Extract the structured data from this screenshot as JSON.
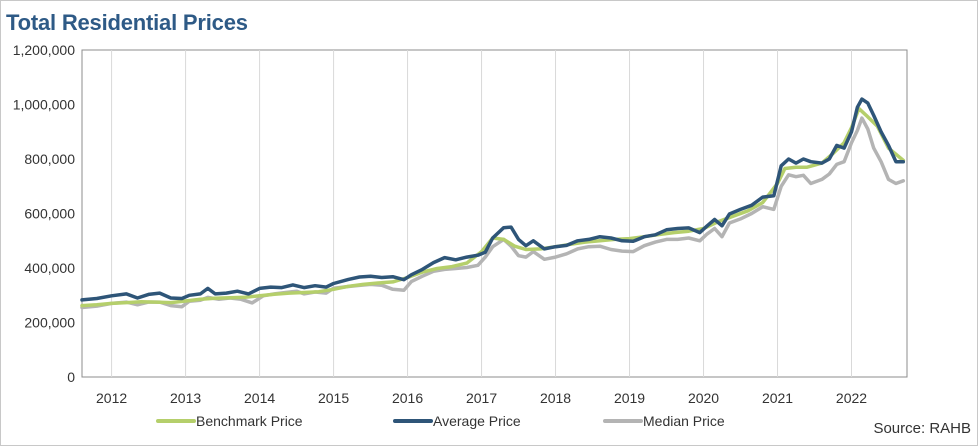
{
  "chart_data": {
    "type": "line",
    "title": "Total Residential Prices",
    "source": "Source: RAHB",
    "ylim": [
      0,
      1200000
    ],
    "y_ticks": [
      "0",
      "200,000",
      "400,000",
      "600,000",
      "800,000",
      "1,000,000",
      "1,200,000"
    ],
    "x_range": [
      2011.6,
      2022.75
    ],
    "x_ticks": [
      "2012",
      "2013",
      "2014",
      "2015",
      "2016",
      "2017",
      "2018",
      "2019",
      "2020",
      "2021",
      "2022"
    ],
    "grid": "vertical year dividers",
    "legend_position": "bottom",
    "series": [
      {
        "name": "Benchmark Price",
        "color": "#b5cf6b",
        "points": [
          [
            2011.6,
            262000
          ],
          [
            2011.8,
            265000
          ],
          [
            2012.0,
            270000
          ],
          [
            2012.2,
            273000
          ],
          [
            2012.4,
            276000
          ],
          [
            2012.6,
            275000
          ],
          [
            2012.8,
            273000
          ],
          [
            2013.0,
            279000
          ],
          [
            2013.2,
            285000
          ],
          [
            2013.4,
            289000
          ],
          [
            2013.6,
            291000
          ],
          [
            2013.8,
            293000
          ],
          [
            2014.0,
            298000
          ],
          [
            2014.2,
            304000
          ],
          [
            2014.4,
            308000
          ],
          [
            2014.6,
            310000
          ],
          [
            2014.8,
            313000
          ],
          [
            2015.0,
            322000
          ],
          [
            2015.2,
            333000
          ],
          [
            2015.4,
            340000
          ],
          [
            2015.6,
            345000
          ],
          [
            2015.8,
            349000
          ],
          [
            2016.0,
            365000
          ],
          [
            2016.2,
            385000
          ],
          [
            2016.4,
            398000
          ],
          [
            2016.6,
            405000
          ],
          [
            2016.8,
            418000
          ],
          [
            2017.0,
            460000
          ],
          [
            2017.15,
            510000
          ],
          [
            2017.3,
            505000
          ],
          [
            2017.45,
            480000
          ],
          [
            2017.6,
            468000
          ],
          [
            2017.8,
            470000
          ],
          [
            2018.0,
            478000
          ],
          [
            2018.2,
            487000
          ],
          [
            2018.4,
            495000
          ],
          [
            2018.6,
            500000
          ],
          [
            2018.8,
            505000
          ],
          [
            2019.0,
            508000
          ],
          [
            2019.2,
            515000
          ],
          [
            2019.4,
            523000
          ],
          [
            2019.6,
            530000
          ],
          [
            2019.8,
            535000
          ],
          [
            2020.0,
            545000
          ],
          [
            2020.2,
            570000
          ],
          [
            2020.4,
            590000
          ],
          [
            2020.6,
            610000
          ],
          [
            2020.8,
            640000
          ],
          [
            2021.0,
            710000
          ],
          [
            2021.1,
            765000
          ],
          [
            2021.25,
            770000
          ],
          [
            2021.4,
            770000
          ],
          [
            2021.6,
            785000
          ],
          [
            2021.75,
            820000
          ],
          [
            2021.9,
            860000
          ],
          [
            2022.0,
            915000
          ],
          [
            2022.1,
            985000
          ],
          [
            2022.2,
            960000
          ],
          [
            2022.35,
            920000
          ],
          [
            2022.5,
            840000
          ],
          [
            2022.7,
            795000
          ]
        ]
      },
      {
        "name": "Average Price",
        "color": "#2e5578",
        "points": [
          [
            2011.6,
            283000
          ],
          [
            2011.8,
            288000
          ],
          [
            2012.0,
            298000
          ],
          [
            2012.2,
            305000
          ],
          [
            2012.35,
            290000
          ],
          [
            2012.5,
            303000
          ],
          [
            2012.65,
            308000
          ],
          [
            2012.8,
            290000
          ],
          [
            2012.95,
            288000
          ],
          [
            2013.05,
            300000
          ],
          [
            2013.2,
            305000
          ],
          [
            2013.3,
            325000
          ],
          [
            2013.4,
            305000
          ],
          [
            2013.55,
            308000
          ],
          [
            2013.7,
            315000
          ],
          [
            2013.85,
            305000
          ],
          [
            2014.0,
            325000
          ],
          [
            2014.15,
            330000
          ],
          [
            2014.3,
            328000
          ],
          [
            2014.45,
            338000
          ],
          [
            2014.6,
            328000
          ],
          [
            2014.75,
            335000
          ],
          [
            2014.9,
            330000
          ],
          [
            2015.0,
            343000
          ],
          [
            2015.2,
            358000
          ],
          [
            2015.35,
            367000
          ],
          [
            2015.5,
            370000
          ],
          [
            2015.65,
            365000
          ],
          [
            2015.8,
            368000
          ],
          [
            2015.95,
            357000
          ],
          [
            2016.05,
            375000
          ],
          [
            2016.2,
            395000
          ],
          [
            2016.35,
            420000
          ],
          [
            2016.5,
            438000
          ],
          [
            2016.65,
            430000
          ],
          [
            2016.8,
            440000
          ],
          [
            2016.95,
            447000
          ],
          [
            2017.05,
            458000
          ],
          [
            2017.15,
            510000
          ],
          [
            2017.3,
            548000
          ],
          [
            2017.4,
            550000
          ],
          [
            2017.5,
            505000
          ],
          [
            2017.6,
            482000
          ],
          [
            2017.7,
            500000
          ],
          [
            2017.85,
            470000
          ],
          [
            2018.0,
            478000
          ],
          [
            2018.15,
            483000
          ],
          [
            2018.3,
            500000
          ],
          [
            2018.45,
            505000
          ],
          [
            2018.6,
            515000
          ],
          [
            2018.75,
            510000
          ],
          [
            2018.9,
            500000
          ],
          [
            2019.05,
            498000
          ],
          [
            2019.2,
            515000
          ],
          [
            2019.35,
            522000
          ],
          [
            2019.5,
            540000
          ],
          [
            2019.65,
            545000
          ],
          [
            2019.8,
            547000
          ],
          [
            2019.95,
            530000
          ],
          [
            2020.05,
            555000
          ],
          [
            2020.15,
            578000
          ],
          [
            2020.25,
            555000
          ],
          [
            2020.35,
            598000
          ],
          [
            2020.5,
            615000
          ],
          [
            2020.65,
            630000
          ],
          [
            2020.8,
            660000
          ],
          [
            2020.95,
            665000
          ],
          [
            2021.05,
            775000
          ],
          [
            2021.15,
            800000
          ],
          [
            2021.25,
            785000
          ],
          [
            2021.35,
            800000
          ],
          [
            2021.45,
            790000
          ],
          [
            2021.6,
            785000
          ],
          [
            2021.7,
            800000
          ],
          [
            2021.8,
            850000
          ],
          [
            2021.9,
            840000
          ],
          [
            2022.0,
            900000
          ],
          [
            2022.08,
            990000
          ],
          [
            2022.14,
            1020000
          ],
          [
            2022.22,
            1005000
          ],
          [
            2022.3,
            960000
          ],
          [
            2022.4,
            900000
          ],
          [
            2022.5,
            850000
          ],
          [
            2022.6,
            790000
          ],
          [
            2022.7,
            790000
          ]
        ]
      },
      {
        "name": "Median Price",
        "color": "#b4b4b4",
        "points": [
          [
            2011.6,
            255000
          ],
          [
            2011.8,
            260000
          ],
          [
            2012.0,
            270000
          ],
          [
            2012.2,
            275000
          ],
          [
            2012.35,
            265000
          ],
          [
            2012.5,
            275000
          ],
          [
            2012.65,
            275000
          ],
          [
            2012.8,
            262000
          ],
          [
            2012.95,
            258000
          ],
          [
            2013.05,
            278000
          ],
          [
            2013.2,
            282000
          ],
          [
            2013.3,
            292000
          ],
          [
            2013.45,
            285000
          ],
          [
            2013.6,
            290000
          ],
          [
            2013.75,
            285000
          ],
          [
            2013.9,
            272000
          ],
          [
            2014.05,
            298000
          ],
          [
            2014.2,
            305000
          ],
          [
            2014.35,
            310000
          ],
          [
            2014.5,
            315000
          ],
          [
            2014.6,
            305000
          ],
          [
            2014.75,
            312000
          ],
          [
            2014.9,
            308000
          ],
          [
            2015.0,
            326000
          ],
          [
            2015.2,
            332000
          ],
          [
            2015.35,
            336000
          ],
          [
            2015.5,
            340000
          ],
          [
            2015.65,
            337000
          ],
          [
            2015.8,
            322000
          ],
          [
            2015.95,
            318000
          ],
          [
            2016.05,
            350000
          ],
          [
            2016.2,
            370000
          ],
          [
            2016.35,
            388000
          ],
          [
            2016.5,
            395000
          ],
          [
            2016.65,
            398000
          ],
          [
            2016.8,
            402000
          ],
          [
            2016.95,
            410000
          ],
          [
            2017.05,
            440000
          ],
          [
            2017.15,
            478000
          ],
          [
            2017.3,
            505000
          ],
          [
            2017.4,
            480000
          ],
          [
            2017.5,
            445000
          ],
          [
            2017.6,
            440000
          ],
          [
            2017.7,
            460000
          ],
          [
            2017.85,
            432000
          ],
          [
            2018.0,
            440000
          ],
          [
            2018.15,
            452000
          ],
          [
            2018.3,
            470000
          ],
          [
            2018.45,
            478000
          ],
          [
            2018.6,
            480000
          ],
          [
            2018.75,
            468000
          ],
          [
            2018.9,
            462000
          ],
          [
            2019.05,
            460000
          ],
          [
            2019.2,
            482000
          ],
          [
            2019.35,
            495000
          ],
          [
            2019.5,
            505000
          ],
          [
            2019.65,
            505000
          ],
          [
            2019.8,
            510000
          ],
          [
            2019.95,
            500000
          ],
          [
            2020.05,
            525000
          ],
          [
            2020.15,
            545000
          ],
          [
            2020.25,
            515000
          ],
          [
            2020.35,
            565000
          ],
          [
            2020.5,
            580000
          ],
          [
            2020.65,
            600000
          ],
          [
            2020.8,
            625000
          ],
          [
            2020.95,
            615000
          ],
          [
            2021.05,
            700000
          ],
          [
            2021.15,
            742000
          ],
          [
            2021.25,
            735000
          ],
          [
            2021.35,
            740000
          ],
          [
            2021.45,
            710000
          ],
          [
            2021.6,
            725000
          ],
          [
            2021.7,
            745000
          ],
          [
            2021.8,
            780000
          ],
          [
            2021.9,
            790000
          ],
          [
            2022.0,
            860000
          ],
          [
            2022.08,
            905000
          ],
          [
            2022.14,
            950000
          ],
          [
            2022.22,
            910000
          ],
          [
            2022.3,
            840000
          ],
          [
            2022.4,
            790000
          ],
          [
            2022.5,
            725000
          ],
          [
            2022.6,
            710000
          ],
          [
            2022.7,
            720000
          ]
        ]
      }
    ]
  }
}
